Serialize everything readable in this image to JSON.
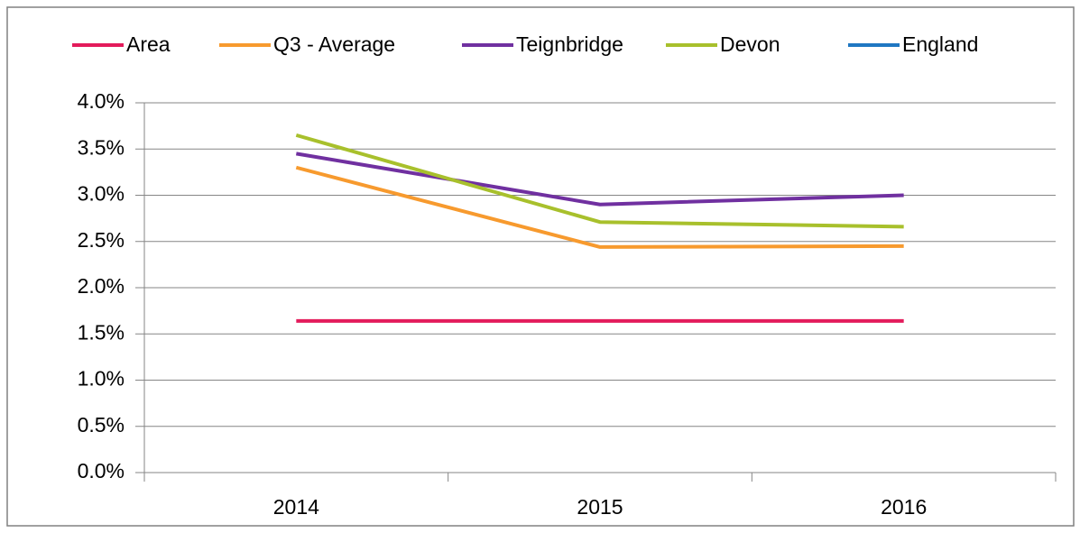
{
  "chart_data": {
    "type": "line",
    "categories": [
      "2014",
      "2015",
      "2016"
    ],
    "series": [
      {
        "name": "Area",
        "color": "#e31b5b",
        "values": [
          1.64,
          1.64,
          1.64
        ]
      },
      {
        "name": "Q3 - Average",
        "color": "#f79a2e",
        "values": [
          3.3,
          2.44,
          2.45
        ]
      },
      {
        "name": "Teignbridge",
        "color": "#7030a0",
        "values": [
          3.45,
          2.9,
          3.0
        ]
      },
      {
        "name": "Devon",
        "color": "#a8c02c",
        "values": [
          3.65,
          2.71,
          2.66
        ]
      },
      {
        "name": "England",
        "color": "#1f77c2",
        "values": [
          null,
          null,
          null
        ]
      }
    ],
    "ylim": [
      0,
      4
    ],
    "yticks": [
      {
        "value": 0,
        "label": "0.0%"
      },
      {
        "value": 0.5,
        "label": "0.5%"
      },
      {
        "value": 1,
        "label": "1.0%"
      },
      {
        "value": 1.5,
        "label": "1.5%"
      },
      {
        "value": 2,
        "label": "2.0%"
      },
      {
        "value": 2.5,
        "label": "2.5%"
      },
      {
        "value": 3,
        "label": "3.0%"
      },
      {
        "value": 3.5,
        "label": "3.5%"
      },
      {
        "value": 4,
        "label": "4.0%"
      }
    ],
    "grid": true,
    "legend": "top"
  }
}
